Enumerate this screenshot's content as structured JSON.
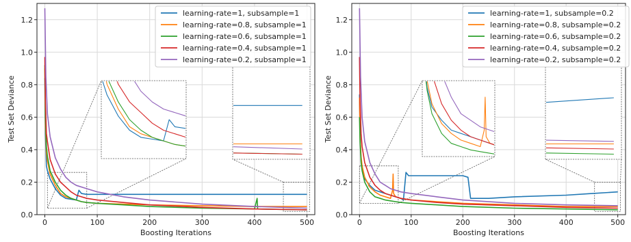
{
  "figure": {
    "panels": [
      {
        "xlabel": "Boosting Iterations",
        "ylabel": "Test Set Deviance"
      },
      {
        "xlabel": "Boosting Iterations",
        "ylabel": "Test Set Deviance"
      }
    ]
  },
  "chart_data": [
    {
      "type": "line",
      "title": "",
      "xlabel": "Boosting Iterations",
      "ylabel": "Test Set Deviance",
      "xlim": [
        -15,
        515
      ],
      "ylim": [
        0,
        1.3
      ],
      "xticks": [
        0,
        100,
        200,
        300,
        400,
        500
      ],
      "yticks": [
        0.0,
        0.2,
        0.4,
        0.6,
        0.8,
        1.0,
        1.2
      ],
      "grid": true,
      "legend_position": "top-right",
      "zoom_insets": [
        {
          "x_range": [
            5,
            80
          ],
          "y_range": [
            0.04,
            0.26
          ]
        },
        {
          "x_range": [
            455,
            505
          ],
          "y_range": [
            0.02,
            0.2
          ]
        }
      ],
      "series": [
        {
          "name": "learning-rate=1, subsample=1",
          "color": "#1f77b4",
          "x": [
            0,
            1,
            3,
            5,
            10,
            20,
            30,
            40,
            50,
            60,
            65,
            70,
            80,
            100,
            150,
            200,
            300,
            400,
            500
          ],
          "y": [
            0.84,
            0.5,
            0.3,
            0.27,
            0.22,
            0.16,
            0.12,
            0.1,
            0.095,
            0.09,
            0.15,
            0.13,
            0.125,
            0.125,
            0.125,
            0.125,
            0.125,
            0.125,
            0.125
          ]
        },
        {
          "name": "learning-rate=0.8, subsample=1",
          "color": "#ff7f0e",
          "x": [
            0,
            1,
            3,
            5,
            10,
            20,
            30,
            40,
            50,
            60,
            70,
            80,
            100,
            150,
            200,
            300,
            400,
            500
          ],
          "y": [
            0.9,
            0.55,
            0.38,
            0.33,
            0.25,
            0.18,
            0.13,
            0.11,
            0.1,
            0.09,
            0.08,
            0.075,
            0.07,
            0.065,
            0.06,
            0.055,
            0.05,
            0.05
          ]
        },
        {
          "name": "learning-rate=0.6, subsample=1",
          "color": "#2ca02c",
          "x": [
            0,
            1,
            3,
            5,
            10,
            20,
            30,
            40,
            50,
            60,
            70,
            80,
            100,
            150,
            200,
            300,
            400,
            405,
            406,
            500
          ],
          "y": [
            0.92,
            0.6,
            0.42,
            0.36,
            0.27,
            0.2,
            0.15,
            0.12,
            0.1,
            0.09,
            0.08,
            0.075,
            0.07,
            0.06,
            0.05,
            0.04,
            0.035,
            0.1,
            0.035,
            0.03
          ]
        },
        {
          "name": "learning-rate=0.4, subsample=1",
          "color": "#d62728",
          "x": [
            0,
            1,
            3,
            5,
            10,
            20,
            30,
            40,
            50,
            60,
            70,
            80,
            100,
            150,
            200,
            300,
            400,
            500
          ],
          "y": [
            0.97,
            0.7,
            0.5,
            0.45,
            0.34,
            0.25,
            0.2,
            0.17,
            0.14,
            0.12,
            0.11,
            0.1,
            0.09,
            0.075,
            0.06,
            0.045,
            0.035,
            0.03
          ]
        },
        {
          "name": "learning-rate=0.2, subsample=1",
          "color": "#9467bd",
          "x": [
            0,
            2,
            5,
            10,
            20,
            30,
            40,
            50,
            60,
            80,
            100,
            150,
            200,
            300,
            400,
            500
          ],
          "y": [
            1.27,
            0.85,
            0.62,
            0.48,
            0.35,
            0.28,
            0.23,
            0.2,
            0.18,
            0.16,
            0.14,
            0.11,
            0.09,
            0.065,
            0.05,
            0.04
          ]
        }
      ]
    },
    {
      "type": "line",
      "title": "",
      "xlabel": "Boosting Iterations",
      "ylabel": "Test Set Deviance",
      "xlim": [
        -15,
        515
      ],
      "ylim": [
        0,
        1.3
      ],
      "xticks": [
        0,
        100,
        200,
        300,
        400,
        500
      ],
      "yticks": [
        0.0,
        0.2,
        0.4,
        0.6,
        0.8,
        1.0,
        1.2
      ],
      "grid": true,
      "legend_position": "top-right",
      "zoom_insets": [
        {
          "x_range": [
            0,
            75
          ],
          "y_range": [
            0.07,
            0.3
          ]
        },
        {
          "x_range": [
            455,
            505
          ],
          "y_range": [
            0.02,
            0.2
          ]
        }
      ],
      "series": [
        {
          "name": "learning-rate=1, subsample=0.2",
          "color": "#1f77b4",
          "x": [
            0,
            1,
            3,
            5,
            10,
            20,
            30,
            40,
            50,
            60,
            70,
            80,
            85,
            90,
            95,
            100,
            150,
            200,
            210,
            215,
            220,
            250,
            300,
            400,
            450,
            500
          ],
          "y": [
            0.74,
            0.5,
            0.33,
            0.28,
            0.22,
            0.18,
            0.15,
            0.14,
            0.13,
            0.12,
            0.11,
            0.1,
            0.09,
            0.26,
            0.24,
            0.24,
            0.24,
            0.24,
            0.23,
            0.1,
            0.1,
            0.1,
            0.11,
            0.12,
            0.13,
            0.14
          ]
        },
        {
          "name": "learning-rate=0.8, subsample=0.2",
          "color": "#ff7f0e",
          "x": [
            0,
            1,
            3,
            5,
            10,
            20,
            30,
            40,
            50,
            60,
            64,
            65,
            66,
            70,
            80,
            100,
            150,
            200,
            300,
            400,
            500
          ],
          "y": [
            0.72,
            0.48,
            0.36,
            0.3,
            0.23,
            0.17,
            0.14,
            0.12,
            0.11,
            0.1,
            0.15,
            0.25,
            0.13,
            0.11,
            0.1,
            0.09,
            0.08,
            0.07,
            0.06,
            0.05,
            0.05
          ]
        },
        {
          "name": "learning-rate=0.6, subsample=0.2",
          "color": "#2ca02c",
          "x": [
            0,
            1,
            3,
            5,
            10,
            20,
            30,
            40,
            50,
            60,
            70,
            80,
            100,
            150,
            200,
            300,
            400,
            500
          ],
          "y": [
            0.6,
            0.45,
            0.32,
            0.27,
            0.2,
            0.14,
            0.11,
            0.1,
            0.09,
            0.085,
            0.08,
            0.075,
            0.07,
            0.06,
            0.05,
            0.04,
            0.035,
            0.03
          ]
        },
        {
          "name": "learning-rate=0.4, subsample=0.2",
          "color": "#d62728",
          "x": [
            0,
            1,
            3,
            5,
            10,
            20,
            30,
            40,
            50,
            60,
            70,
            80,
            100,
            150,
            200,
            300,
            400,
            500
          ],
          "y": [
            0.97,
            0.7,
            0.5,
            0.42,
            0.32,
            0.23,
            0.18,
            0.15,
            0.13,
            0.12,
            0.11,
            0.1,
            0.09,
            0.075,
            0.065,
            0.055,
            0.045,
            0.04
          ]
        },
        {
          "name": "learning-rate=0.2, subsample=0.2",
          "color": "#9467bd",
          "x": [
            0,
            2,
            5,
            10,
            20,
            30,
            40,
            50,
            60,
            80,
            100,
            150,
            200,
            300,
            400,
            500
          ],
          "y": [
            1.27,
            0.85,
            0.6,
            0.45,
            0.32,
            0.25,
            0.2,
            0.18,
            0.16,
            0.14,
            0.13,
            0.11,
            0.09,
            0.07,
            0.06,
            0.055
          ]
        }
      ]
    }
  ]
}
